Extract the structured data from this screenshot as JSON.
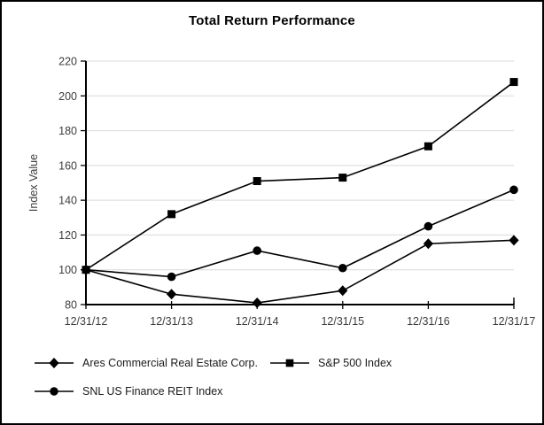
{
  "chart_data": {
    "type": "line",
    "title": "Total Return Performance",
    "xlabel": "",
    "ylabel": "Index Value",
    "x_labels": [
      "12/31/12",
      "12/31/13",
      "12/31/14",
      "12/31/15",
      "12/31/16",
      "12/31/17"
    ],
    "ylim": [
      80,
      220
    ],
    "yticks": [
      80,
      100,
      120,
      140,
      160,
      180,
      200,
      220
    ],
    "grid": "horizontal",
    "legend_position": "bottom",
    "series": [
      {
        "name": "Ares Commercial Real Estate Corp.",
        "marker": "diamond",
        "values": [
          100,
          86,
          81,
          88,
          115,
          117
        ]
      },
      {
        "name": "S&P 500 Index",
        "marker": "square",
        "values": [
          100,
          132,
          151,
          153,
          171,
          208
        ]
      },
      {
        "name": "SNL US Finance REIT Index",
        "marker": "circle",
        "values": [
          100,
          96,
          111,
          101,
          125,
          146
        ]
      }
    ],
    "colors": {
      "line": "#000000",
      "grid": "#d9d9d9",
      "axis": "#000000",
      "text": "#3d3d3d"
    }
  }
}
